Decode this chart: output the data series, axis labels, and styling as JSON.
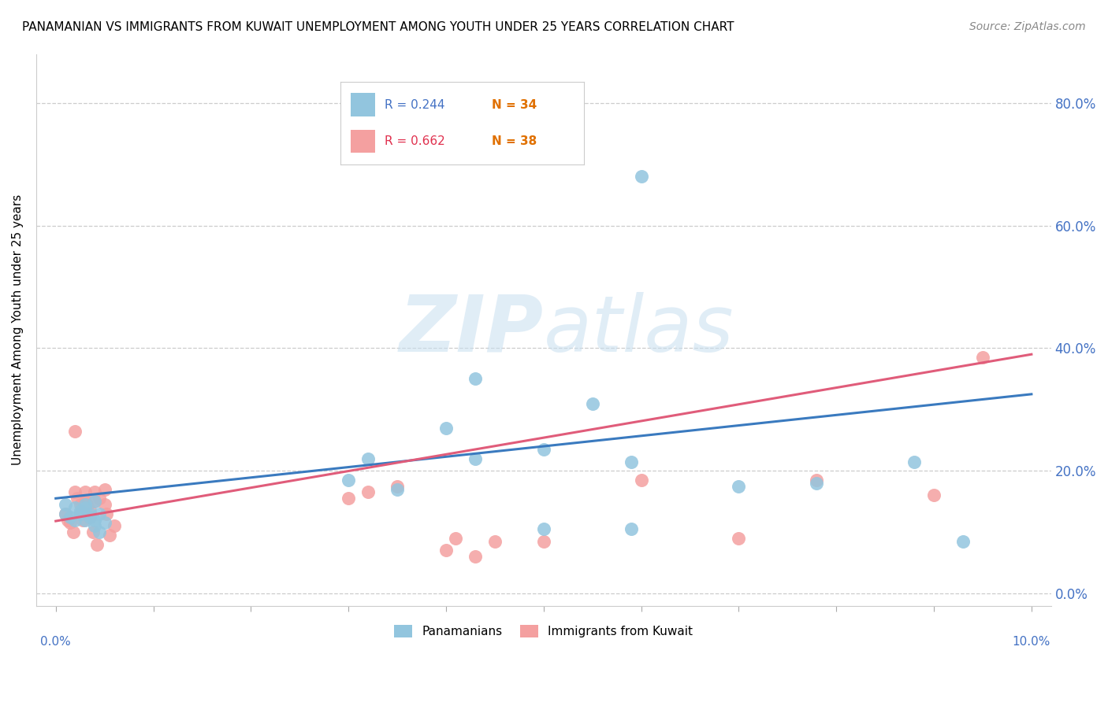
{
  "title": "PANAMANIAN VS IMMIGRANTS FROM KUWAIT UNEMPLOYMENT AMONG YOUTH UNDER 25 YEARS CORRELATION CHART",
  "source": "Source: ZipAtlas.com",
  "ylabel": "Unemployment Among Youth under 25 years",
  "ylabel_ticks": [
    "0.0%",
    "20.0%",
    "40.0%",
    "60.0%",
    "80.0%"
  ],
  "ylabel_tick_vals": [
    0.0,
    0.2,
    0.4,
    0.6,
    0.8
  ],
  "color_blue": "#92c5de",
  "color_pink": "#f4a0a0",
  "color_blue_line": "#3a7abf",
  "color_pink_line": "#e05c7a",
  "watermark_color": "#c8dff0",
  "blue_scatter_x": [
    0.1,
    0.1,
    0.15,
    0.2,
    0.2,
    0.25,
    0.25,
    0.3,
    0.3,
    0.3,
    0.35,
    0.35,
    0.4,
    0.4,
    0.4,
    0.45,
    0.45,
    0.5,
    3.0,
    3.2,
    3.5,
    4.0,
    4.3,
    4.3,
    5.0,
    5.0,
    5.5,
    5.9,
    5.9,
    6.0,
    7.0,
    7.8,
    8.8,
    9.3
  ],
  "blue_scatter_y": [
    0.145,
    0.13,
    0.125,
    0.14,
    0.12,
    0.135,
    0.13,
    0.145,
    0.14,
    0.12,
    0.13,
    0.125,
    0.15,
    0.12,
    0.11,
    0.13,
    0.1,
    0.115,
    0.185,
    0.22,
    0.17,
    0.27,
    0.35,
    0.22,
    0.235,
    0.105,
    0.31,
    0.215,
    0.105,
    0.68,
    0.175,
    0.18,
    0.215,
    0.085
  ],
  "pink_scatter_x": [
    0.1,
    0.12,
    0.15,
    0.18,
    0.2,
    0.2,
    0.22,
    0.25,
    0.25,
    0.28,
    0.3,
    0.3,
    0.32,
    0.35,
    0.35,
    0.38,
    0.4,
    0.4,
    0.42,
    0.45,
    0.5,
    0.5,
    0.52,
    0.55,
    0.6,
    3.0,
    3.2,
    3.5,
    4.0,
    4.1,
    4.3,
    4.5,
    5.0,
    6.0,
    7.0,
    7.8,
    9.0,
    9.5
  ],
  "pink_scatter_y": [
    0.13,
    0.12,
    0.115,
    0.1,
    0.265,
    0.165,
    0.155,
    0.145,
    0.13,
    0.12,
    0.165,
    0.15,
    0.145,
    0.135,
    0.125,
    0.1,
    0.165,
    0.15,
    0.08,
    0.155,
    0.17,
    0.145,
    0.13,
    0.095,
    0.11,
    0.155,
    0.165,
    0.175,
    0.07,
    0.09,
    0.06,
    0.085,
    0.085,
    0.185,
    0.09,
    0.185,
    0.16,
    0.385
  ],
  "xlim": [
    -0.2,
    10.2
  ],
  "ylim": [
    -0.02,
    0.88
  ],
  "blue_line_x": [
    0.0,
    10.0
  ],
  "blue_line_y": [
    0.155,
    0.325
  ],
  "pink_line_x": [
    0.0,
    10.0
  ],
  "pink_line_y": [
    0.118,
    0.39
  ],
  "xticks": [
    0.0,
    1.0,
    2.0,
    3.0,
    4.0,
    5.0,
    6.0,
    7.0,
    8.0,
    9.0,
    10.0
  ],
  "legend_r1": "R = 0.244",
  "legend_n1": "N = 34",
  "legend_r2": "R = 0.662",
  "legend_n2": "N = 38"
}
